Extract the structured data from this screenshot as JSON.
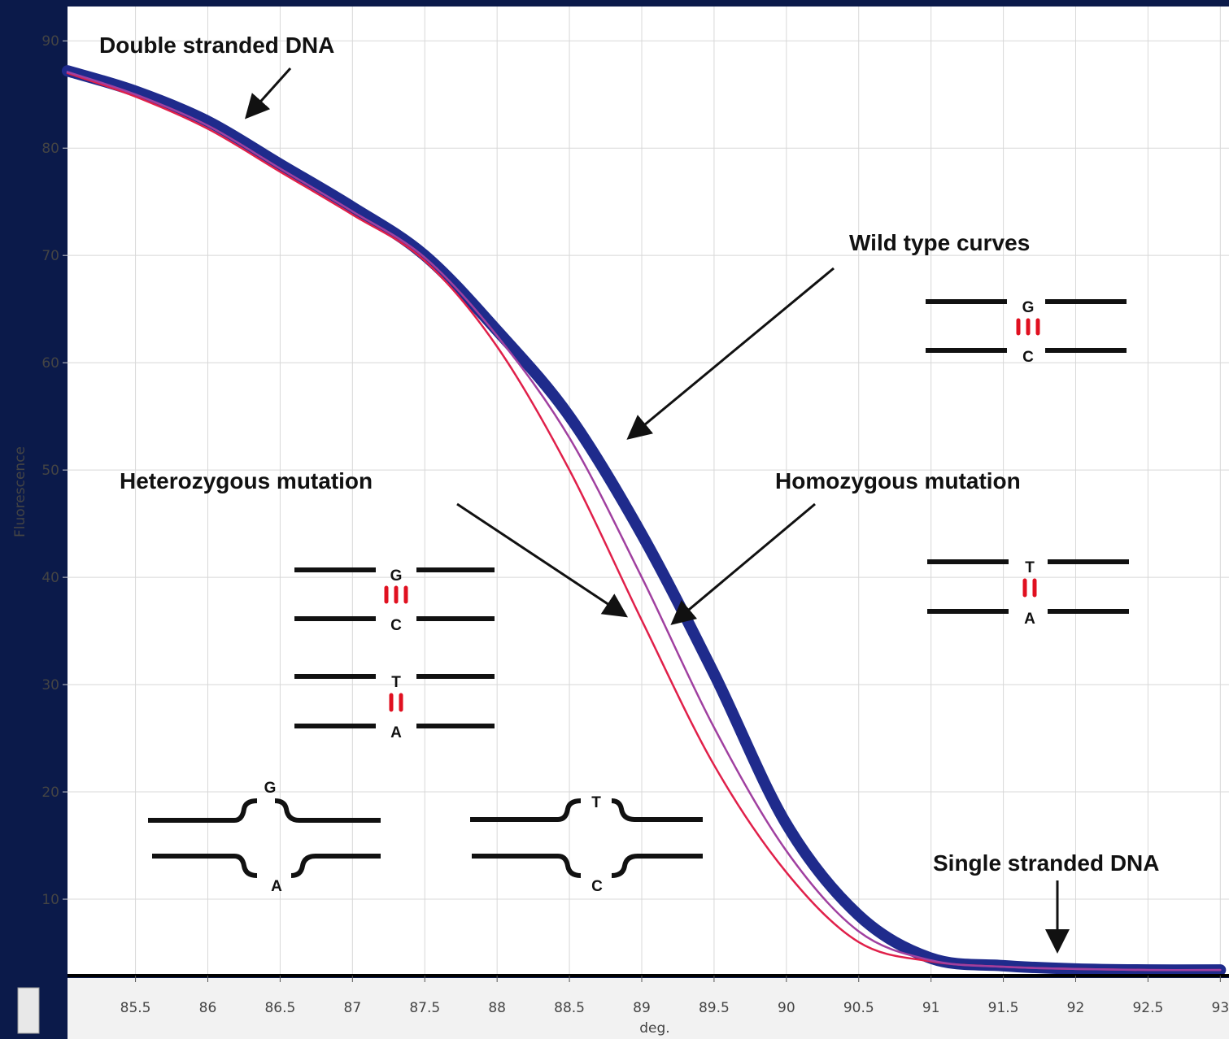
{
  "chart_data": {
    "type": "line",
    "x_label": "deg.",
    "y_label": "Fluorescence",
    "x": [
      85.03,
      85.5,
      86,
      86.5,
      87,
      87.5,
      88,
      88.5,
      89,
      89.5,
      90,
      90.5,
      91,
      91.5,
      92,
      92.5,
      93
    ],
    "series": [
      {
        "color": "#e0204a",
        "values": [
          87.0,
          84.8,
          81.8,
          77.8,
          73.8,
          69.5,
          61.5,
          50,
          36,
          22.5,
          12.5,
          6,
          4.2,
          3.7,
          3.5,
          3.4,
          3.4
        ]
      },
      {
        "color": "#a040a0",
        "values": [
          87.1,
          85.0,
          82.1,
          78.1,
          74.1,
          69.8,
          62.5,
          53,
          40,
          26,
          14.5,
          7,
          4.3,
          3.7,
          3.5,
          3.4,
          3.4
        ]
      },
      {
        "color": "#1f2b8c",
        "values": [
          87.2,
          85.3,
          82.5,
          78.5,
          74.5,
          70,
          63,
          55,
          44,
          31,
          17,
          8.5,
          4.5,
          3.8,
          3.5,
          3.4,
          3.4
        ]
      }
    ],
    "xlim": [
      85.03,
      93.06
    ],
    "ylim": [
      2.88,
      93.2
    ],
    "xticks": [
      85.5,
      86,
      86.5,
      87,
      87.5,
      88,
      88.5,
      89,
      89.5,
      90,
      90.5,
      91,
      91.5,
      92,
      92.5,
      93
    ],
    "yticks": [
      10,
      20,
      30,
      40,
      50,
      60,
      70,
      80,
      90
    ],
    "grid": true,
    "annotations": [
      "Double stranded DNA",
      "Wild type curves",
      "Heterozygous mutation",
      "Homozygous mutation",
      "Single stranded DNA"
    ],
    "diagram_labels": [
      "G",
      "C",
      "G",
      "C",
      "T",
      "A",
      "T",
      "A",
      "G",
      "A",
      "T",
      "C"
    ]
  }
}
